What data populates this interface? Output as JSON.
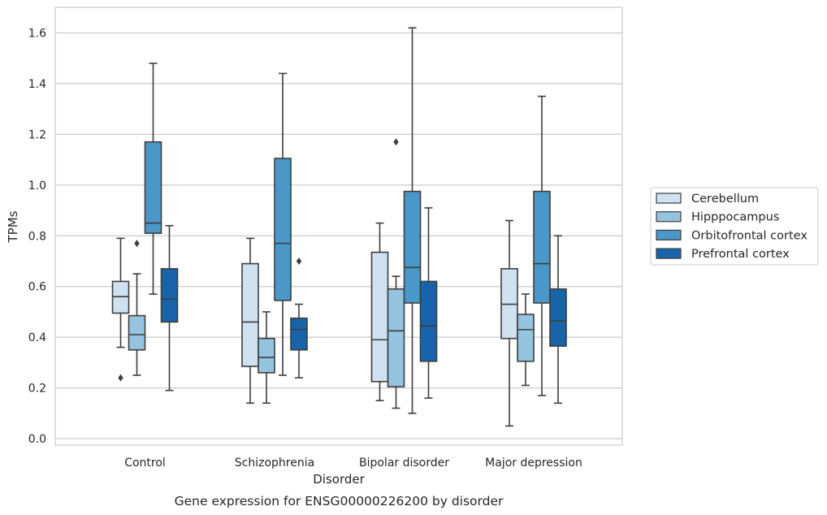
{
  "chart_data": {
    "type": "box",
    "title": "",
    "caption": "Gene expression for ENSG00000226200 by disorder",
    "xlabel": "Disorder",
    "ylabel": "TPMs",
    "ylim": [
      -0.02,
      1.7
    ],
    "yticks": [
      0.0,
      0.2,
      0.4,
      0.6,
      0.8,
      1.0,
      1.2,
      1.4,
      1.6
    ],
    "ytick_labels": [
      "0.0",
      "0.2",
      "0.4",
      "0.6",
      "0.8",
      "1.0",
      "1.2",
      "1.4",
      "1.6"
    ],
    "grid": "horizontal",
    "legend_position": "right",
    "categories": [
      "Control",
      "Schizophrenia",
      "Bipolar disorder",
      "Major depression"
    ],
    "series": [
      {
        "name": "Cerebellum",
        "color": "#d0e1f2",
        "boxes": [
          {
            "whislo": 0.36,
            "q1": 0.495,
            "median": 0.56,
            "q3": 0.62,
            "whishi": 0.79,
            "fliers": [
              0.24
            ]
          },
          {
            "whislo": 0.14,
            "q1": 0.285,
            "median": 0.46,
            "q3": 0.69,
            "whishi": 0.79,
            "fliers": []
          },
          {
            "whislo": 0.15,
            "q1": 0.225,
            "median": 0.39,
            "q3": 0.735,
            "whishi": 0.85,
            "fliers": []
          },
          {
            "whislo": 0.05,
            "q1": 0.395,
            "median": 0.53,
            "q3": 0.67,
            "whishi": 0.86,
            "fliers": []
          }
        ]
      },
      {
        "name": "Hipppocampus",
        "color": "#94c4df",
        "boxes": [
          {
            "whislo": 0.25,
            "q1": 0.35,
            "median": 0.41,
            "q3": 0.485,
            "whishi": 0.65,
            "fliers": [
              0.77
            ]
          },
          {
            "whislo": 0.14,
            "q1": 0.26,
            "median": 0.32,
            "q3": 0.395,
            "whishi": 0.5,
            "fliers": []
          },
          {
            "whislo": 0.12,
            "q1": 0.205,
            "median": 0.425,
            "q3": 0.59,
            "whishi": 0.64,
            "fliers": [
              1.17
            ]
          },
          {
            "whislo": 0.21,
            "q1": 0.305,
            "median": 0.43,
            "q3": 0.49,
            "whishi": 0.57,
            "fliers": []
          }
        ]
      },
      {
        "name": "Orbitofrontal cortex",
        "color": "#4a98c9",
        "boxes": [
          {
            "whislo": 0.57,
            "q1": 0.81,
            "median": 0.85,
            "q3": 1.17,
            "whishi": 1.48,
            "fliers": []
          },
          {
            "whislo": 0.25,
            "q1": 0.545,
            "median": 0.77,
            "q3": 1.105,
            "whishi": 1.44,
            "fliers": []
          },
          {
            "whislo": 0.1,
            "q1": 0.535,
            "median": 0.675,
            "q3": 0.975,
            "whishi": 1.62,
            "fliers": []
          },
          {
            "whislo": 0.17,
            "q1": 0.535,
            "median": 0.69,
            "q3": 0.975,
            "whishi": 1.35,
            "fliers": []
          }
        ]
      },
      {
        "name": "Prefrontal cortex",
        "color": "#1764ab",
        "boxes": [
          {
            "whislo": 0.19,
            "q1": 0.46,
            "median": 0.55,
            "q3": 0.67,
            "whishi": 0.84,
            "fliers": []
          },
          {
            "whislo": 0.24,
            "q1": 0.35,
            "median": 0.43,
            "q3": 0.475,
            "whishi": 0.53,
            "fliers": [
              0.7
            ]
          },
          {
            "whislo": 0.16,
            "q1": 0.305,
            "median": 0.445,
            "q3": 0.62,
            "whishi": 0.91,
            "fliers": []
          },
          {
            "whislo": 0.14,
            "q1": 0.365,
            "median": 0.465,
            "q3": 0.59,
            "whishi": 0.8,
            "fliers": []
          }
        ]
      }
    ]
  }
}
